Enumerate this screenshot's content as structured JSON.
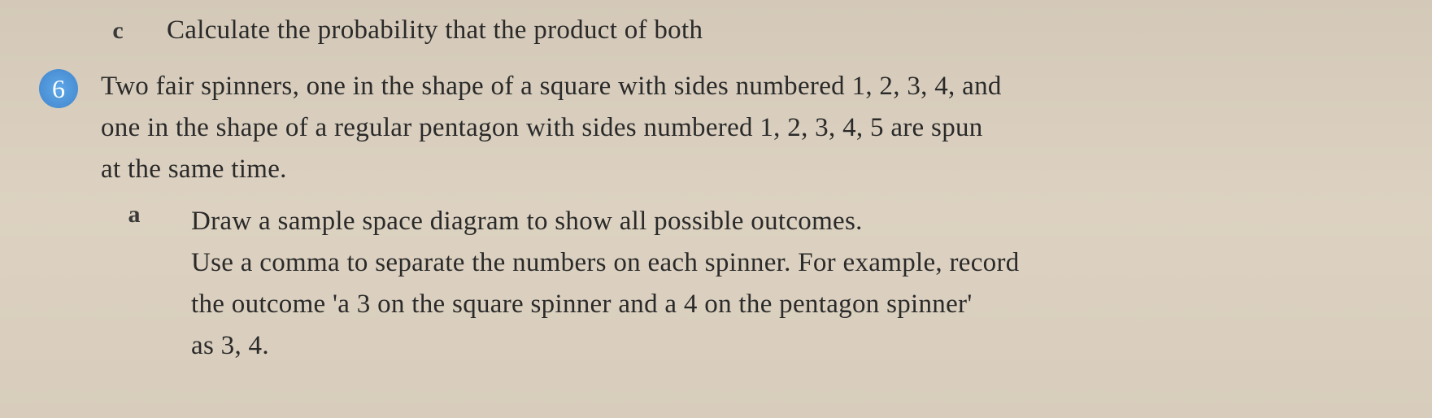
{
  "partC": {
    "label": "c",
    "text": "Calculate the probability that the product of both"
  },
  "question6": {
    "number": "6",
    "line1": "Two fair spinners, one in the shape of a square with sides numbered 1, 2, 3, 4, and",
    "line2": "one in the shape of a regular pentagon with sides numbered 1, 2, 3, 4, 5 are spun",
    "line3": "at the same time."
  },
  "partA": {
    "label": "a",
    "line1": "Draw a sample space diagram to show all possible outcomes.",
    "line2": "Use a comma to separate the numbers on each spinner. For example, record",
    "line3": "the outcome 'a 3 on the square spinner and a 4 on the pentagon spinner'",
    "line4": "as 3, 4."
  },
  "colors": {
    "background": "#d8cdbc",
    "text": "#2a2a2a",
    "bulletBg": "#4a8fd4",
    "bulletText": "#ffffff"
  },
  "typography": {
    "bodyFontSize": 33,
    "labelFontSize": 30,
    "numberFontSize": 32,
    "fontFamily": "Georgia, Times New Roman, serif",
    "lineHeight": 1.55
  }
}
